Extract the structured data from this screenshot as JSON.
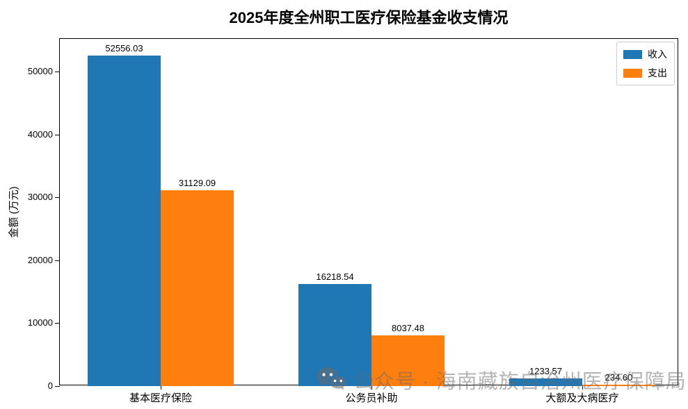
{
  "title": "2025年度全州职工医疗保险基金收支情况",
  "watermark": {
    "icon": "wechat-icon",
    "text": "公众号 · 海南藏族自治州医疗保障局"
  },
  "chart_data": {
    "type": "bar",
    "title": "2025年度全州职工医疗保险基金收支情况",
    "categories": [
      "基本医疗保险",
      "公务员补助",
      "大额及大病医疗"
    ],
    "series": [
      {
        "name": "收入",
        "color": "#1f77b4",
        "values": [
          52556.03,
          16218.54,
          1233.57
        ],
        "labels": [
          "52556.03",
          "16218.54",
          "1233.57"
        ]
      },
      {
        "name": "支出",
        "color": "#ff7f0e",
        "values": [
          31129.09,
          8037.48,
          234.6
        ],
        "labels": [
          "31129.09",
          "8037.48",
          "234.60"
        ]
      }
    ],
    "xlabel": "",
    "ylabel": "金额 (万元)",
    "ylim": [
      0,
      55184
    ],
    "yticks": [
      0,
      10000,
      20000,
      30000,
      40000,
      50000
    ],
    "legend_position": "upper right",
    "grid": false
  }
}
